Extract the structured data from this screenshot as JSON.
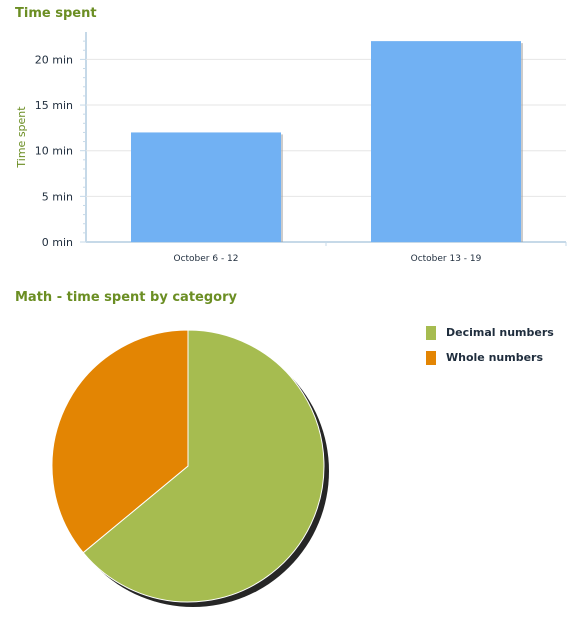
{
  "chart_data": [
    {
      "type": "bar",
      "title": "Time spent",
      "ylabel": "Time spent",
      "xlabel": "",
      "categories": [
        "October 6 - 12",
        "October 13 - 19"
      ],
      "values": [
        12,
        22
      ],
      "ylim": [
        0,
        23
      ],
      "yticks": [
        0,
        5,
        10,
        15,
        20
      ],
      "ytick_labels": [
        "0 min",
        "5 min",
        "10 min",
        "15 min",
        "20 min"
      ],
      "bar_color": "#71b1f3",
      "grid": true
    },
    {
      "type": "pie",
      "title": "Math - time spent by category",
      "labels": [
        "Decimal numbers",
        "Whole numbers"
      ],
      "values": [
        64,
        36
      ],
      "colors": [
        "#a6bc50",
        "#e38503"
      ],
      "legend": "top-right"
    }
  ]
}
